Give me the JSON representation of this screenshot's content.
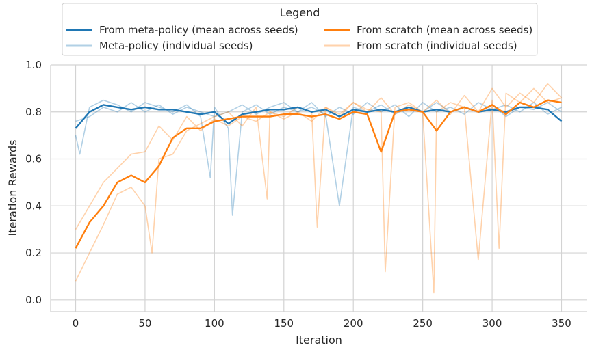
{
  "chart_data": {
    "type": "line",
    "title": "",
    "xlabel": "Iteration",
    "ylabel": "Iteration Rewards",
    "xlim": [
      -18,
      368
    ],
    "ylim": [
      -0.05,
      1.0
    ],
    "xticks": [
      0,
      50,
      100,
      150,
      200,
      250,
      300,
      350
    ],
    "yticks": [
      0.0,
      0.2,
      0.4,
      0.6,
      0.8,
      1.0
    ],
    "xtick_labels": [
      "0",
      "50",
      "100",
      "150",
      "200",
      "250",
      "300",
      "350"
    ],
    "ytick_labels": [
      "0.0",
      "0.2",
      "0.4",
      "0.6",
      "0.8",
      "1.0"
    ],
    "grid": true,
    "legend": {
      "title": "Legend",
      "position": "top-center",
      "entries": [
        {
          "label": "From meta-policy (mean across seeds)",
          "color": "#1f77b4",
          "style": "mean"
        },
        {
          "label": "From scratch (mean across seeds)",
          "color": "#ff7f0e",
          "style": "mean"
        },
        {
          "label": "Meta-policy (individual seeds)",
          "color": "#1f77b4",
          "style": "seed"
        },
        {
          "label": "From scratch (individual seeds)",
          "color": "#ff7f0e",
          "style": "seed"
        }
      ]
    },
    "series": [
      {
        "name": "From meta-policy (mean across seeds)",
        "kind": "mean",
        "color": "#1f77b4",
        "x": [
          0,
          10,
          20,
          30,
          40,
          50,
          60,
          70,
          80,
          90,
          100,
          110,
          120,
          130,
          140,
          150,
          160,
          170,
          180,
          190,
          200,
          210,
          220,
          230,
          240,
          250,
          260,
          270,
          280,
          290,
          300,
          310,
          320,
          330,
          340,
          350
        ],
        "values": [
          0.73,
          0.8,
          0.83,
          0.82,
          0.81,
          0.82,
          0.81,
          0.81,
          0.8,
          0.79,
          0.8,
          0.75,
          0.79,
          0.8,
          0.81,
          0.81,
          0.82,
          0.8,
          0.81,
          0.78,
          0.81,
          0.8,
          0.81,
          0.8,
          0.82,
          0.8,
          0.81,
          0.8,
          0.82,
          0.8,
          0.81,
          0.8,
          0.82,
          0.82,
          0.81,
          0.76
        ]
      },
      {
        "name": "From scratch (mean across seeds)",
        "kind": "mean",
        "color": "#ff7f0e",
        "x": [
          0,
          10,
          20,
          30,
          40,
          50,
          60,
          70,
          80,
          90,
          100,
          110,
          120,
          130,
          140,
          150,
          160,
          170,
          180,
          190,
          200,
          210,
          220,
          230,
          240,
          250,
          260,
          270,
          280,
          290,
          300,
          310,
          320,
          330,
          340,
          350
        ],
        "values": [
          0.22,
          0.33,
          0.4,
          0.5,
          0.53,
          0.5,
          0.57,
          0.69,
          0.73,
          0.73,
          0.76,
          0.77,
          0.78,
          0.78,
          0.78,
          0.79,
          0.79,
          0.78,
          0.79,
          0.77,
          0.8,
          0.79,
          0.63,
          0.8,
          0.81,
          0.8,
          0.72,
          0.8,
          0.82,
          0.8,
          0.83,
          0.79,
          0.84,
          0.82,
          0.85,
          0.84
        ]
      },
      {
        "name": "Meta-policy (individual seeds)",
        "kind": "seed",
        "color": "#1f77b4",
        "x": [
          0,
          3,
          10,
          20,
          30,
          40,
          50,
          60,
          70,
          80,
          90,
          97,
          100,
          110,
          113,
          120,
          130,
          140,
          150,
          160,
          170,
          180,
          190,
          200,
          210,
          220,
          230,
          240,
          250,
          260,
          270,
          280,
          290,
          300,
          310,
          320,
          330,
          340,
          350
        ],
        "values": [
          0.7,
          0.62,
          0.82,
          0.85,
          0.83,
          0.8,
          0.84,
          0.82,
          0.8,
          0.83,
          0.78,
          0.52,
          0.82,
          0.73,
          0.36,
          0.8,
          0.83,
          0.79,
          0.82,
          0.8,
          0.84,
          0.78,
          0.82,
          0.79,
          0.84,
          0.8,
          0.83,
          0.78,
          0.84,
          0.8,
          0.82,
          0.79,
          0.84,
          0.81,
          0.83,
          0.8,
          0.84,
          0.79,
          0.82
        ]
      },
      {
        "name": "Meta-policy (individual seeds)",
        "kind": "seed",
        "color": "#1f77b4",
        "x": [
          0,
          10,
          20,
          30,
          40,
          50,
          60,
          70,
          80,
          90,
          100,
          110,
          120,
          130,
          140,
          150,
          160,
          170,
          180,
          190,
          200,
          210,
          220,
          230,
          240,
          250,
          260,
          270,
          280,
          290,
          300,
          310,
          320,
          330,
          340,
          350
        ],
        "values": [
          0.76,
          0.78,
          0.82,
          0.8,
          0.84,
          0.8,
          0.83,
          0.79,
          0.82,
          0.8,
          0.78,
          0.8,
          0.83,
          0.79,
          0.82,
          0.84,
          0.8,
          0.82,
          0.79,
          0.4,
          0.82,
          0.8,
          0.83,
          0.79,
          0.82,
          0.8,
          0.84,
          0.8,
          0.82,
          0.8,
          0.83,
          0.78,
          0.82,
          0.81,
          0.84,
          0.8
        ]
      },
      {
        "name": "From scratch (individual seeds)",
        "kind": "seed",
        "color": "#ff7f0e",
        "x": [
          0,
          10,
          20,
          30,
          40,
          50,
          55,
          60,
          70,
          80,
          90,
          100,
          110,
          120,
          130,
          138,
          140,
          150,
          160,
          170,
          174,
          180,
          190,
          200,
          210,
          220,
          223,
          230,
          240,
          250,
          258,
          260,
          270,
          280,
          290,
          300,
          305,
          310,
          320,
          330,
          340,
          350
        ],
        "values": [
          0.08,
          0.2,
          0.32,
          0.45,
          0.48,
          0.4,
          0.2,
          0.6,
          0.62,
          0.72,
          0.75,
          0.78,
          0.8,
          0.74,
          0.82,
          0.43,
          0.8,
          0.78,
          0.82,
          0.8,
          0.31,
          0.82,
          0.79,
          0.84,
          0.81,
          0.8,
          0.12,
          0.82,
          0.84,
          0.8,
          0.03,
          0.8,
          0.84,
          0.82,
          0.17,
          0.85,
          0.22,
          0.88,
          0.84,
          0.9,
          0.84,
          0.86
        ]
      },
      {
        "name": "From scratch (individual seeds)",
        "kind": "seed",
        "color": "#ff7f0e",
        "x": [
          0,
          10,
          20,
          30,
          40,
          50,
          60,
          70,
          80,
          90,
          100,
          110,
          120,
          130,
          140,
          150,
          160,
          170,
          180,
          190,
          200,
          210,
          220,
          230,
          240,
          250,
          260,
          270,
          280,
          290,
          300,
          310,
          320,
          330,
          340,
          350
        ],
        "values": [
          0.3,
          0.4,
          0.5,
          0.56,
          0.62,
          0.63,
          0.74,
          0.68,
          0.78,
          0.72,
          0.77,
          0.74,
          0.78,
          0.76,
          0.8,
          0.77,
          0.8,
          0.76,
          0.82,
          0.78,
          0.84,
          0.8,
          0.86,
          0.79,
          0.83,
          0.8,
          0.85,
          0.79,
          0.87,
          0.8,
          0.9,
          0.82,
          0.88,
          0.84,
          0.92,
          0.86
        ]
      }
    ]
  }
}
